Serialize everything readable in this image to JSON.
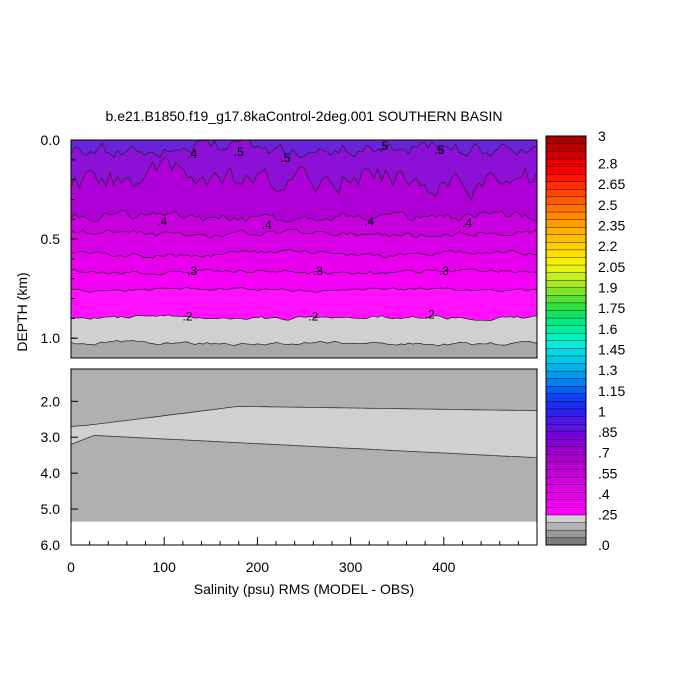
{
  "chart_data": {
    "type": "contour",
    "title": "b.e21.B1850.f19_g17.8kaControl-2deg.001 SOUTHERN BASIN",
    "xlabel": "Salinity (psu) RMS (MODEL - OBS)",
    "ylabel": "DEPTH (km)",
    "xlim": [
      0,
      500
    ],
    "x_ticks": [
      "0",
      "100",
      "200",
      "300",
      "400"
    ],
    "x_tick_values": [
      0,
      100,
      200,
      300,
      400
    ],
    "upper_panel": {
      "ylim": [
        0.0,
        1.1
      ],
      "y_ticks": [
        "0.0",
        "0.5",
        "1.0"
      ],
      "y_tick_values": [
        0.0,
        0.5,
        1.0
      ],
      "contour_labels": [
        {
          "text": ".4",
          "x": 130,
          "depth": 0.07
        },
        {
          "text": ".5",
          "x": 180,
          "depth": 0.06
        },
        {
          "text": ".5",
          "x": 230,
          "depth": 0.09
        },
        {
          "text": ".5",
          "x": 335,
          "depth": 0.03
        },
        {
          "text": ".5",
          "x": 395,
          "depth": 0.05
        },
        {
          "text": ".4",
          "x": 98,
          "depth": 0.41
        },
        {
          "text": ".4",
          "x": 210,
          "depth": 0.43
        },
        {
          "text": ".4",
          "x": 320,
          "depth": 0.41
        },
        {
          "text": ".4",
          "x": 425,
          "depth": 0.42
        },
        {
          "text": ".3",
          "x": 130,
          "depth": 0.66
        },
        {
          "text": ".3",
          "x": 265,
          "depth": 0.66
        },
        {
          "text": ".3",
          "x": 400,
          "depth": 0.66
        },
        {
          "text": ".2",
          "x": 125,
          "depth": 0.89
        },
        {
          "text": ".2",
          "x": 260,
          "depth": 0.89
        },
        {
          "text": ".2",
          "x": 385,
          "depth": 0.88
        }
      ]
    },
    "lower_panel": {
      "ylim": [
        1.1,
        6.0
      ],
      "y_ticks": [
        "2.0",
        "3.0",
        "4.0",
        "5.0",
        "6.0"
      ],
      "y_tick_values": [
        2.0,
        3.0,
        4.0,
        5.0,
        6.0
      ],
      "bottom_depth": 5.35
    },
    "colorbar": {
      "labels": [
        ".0",
        ".25",
        ".4",
        ".55",
        ".7",
        ".85",
        "1",
        "1.15",
        "1.3",
        "1.45",
        "1.6",
        "1.75",
        "1.9",
        "2.05",
        "2.2",
        "2.35",
        "2.5",
        "2.65",
        "2.8",
        "3"
      ],
      "label_values": [
        0,
        0.25,
        0.4,
        0.55,
        0.7,
        0.85,
        1.0,
        1.15,
        1.3,
        1.45,
        1.6,
        1.75,
        1.9,
        2.05,
        2.2,
        2.35,
        2.5,
        2.65,
        2.8,
        3.0
      ],
      "colors": [
        "#7a7a7a",
        "#9a9a9a",
        "#b4b4b4",
        "#d0d0d0",
        "#ff00ff",
        "#f400f4",
        "#e800ee",
        "#dc00e6",
        "#d000de",
        "#c400d8",
        "#b800d2",
        "#a800cc",
        "#9a00cc",
        "#8800d4",
        "#7200dc",
        "#5c10e0",
        "#4818e8",
        "#3020ee",
        "#1c2cf2",
        "#1040f4",
        "#0060f4",
        "#0080f0",
        "#009cec",
        "#00b4ea",
        "#00c8e8",
        "#00dce6",
        "#00eedc",
        "#00f4c0",
        "#00f0a0",
        "#00ec80",
        "#10e460",
        "#30e040",
        "#58e030",
        "#80e428",
        "#a8ea20",
        "#c8f018",
        "#e8f410",
        "#f8f000",
        "#ffe000",
        "#ffd000",
        "#ffc000",
        "#ffb000",
        "#ff9c00",
        "#ff8800",
        "#ff7400",
        "#ff5c00",
        "#ff4400",
        "#ff2c00",
        "#ff1400",
        "#f80000",
        "#e40000",
        "#d00000",
        "#bc0000",
        "#a80000"
      ]
    },
    "legend": "right colorbar"
  }
}
